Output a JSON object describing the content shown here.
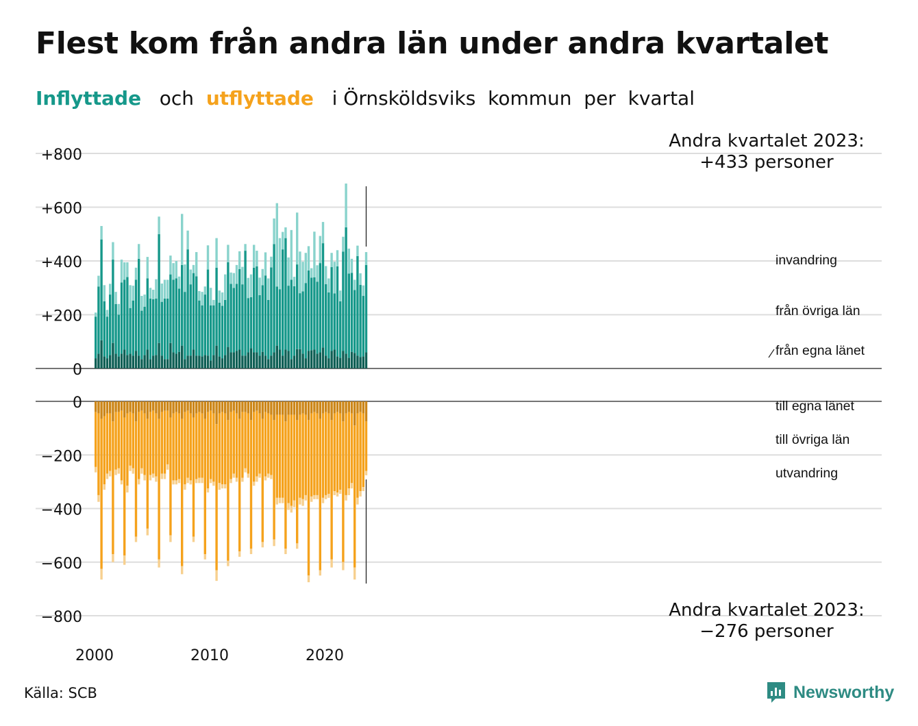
{
  "title": "Flest kom från andra län under andra kvartalet",
  "subtitle": {
    "in_word": "Inflyttade",
    "och": "och",
    "out_word": "utflyttade",
    "rest": "i Örnsköldsviks  kommun  per  kvartal"
  },
  "source": "Källa: SCB",
  "brand": "Newsworthy",
  "colors": {
    "in_egna": "#0e5f55",
    "in_ovriga": "#16988a",
    "in_invandring": "#89d3cc",
    "out_egna": "#cc8618",
    "out_ovriga": "#f5a21c",
    "out_utvandring": "#f7d08f",
    "in_text": "#16988a",
    "out_text": "#f5a21c",
    "grid": "#dddddd"
  },
  "chart_data": {
    "type": "bar",
    "stacked": true,
    "x_start": "2000 Q1",
    "x_end": "2023 Q2",
    "xticks": [
      "2000",
      "2010",
      "2020"
    ],
    "top_panel": {
      "ylim": [
        0,
        800
      ],
      "yticks": [
        0,
        200,
        400,
        600,
        800
      ],
      "ytick_labels": [
        "0",
        "+200",
        "+400",
        "+600",
        "+800"
      ],
      "annotation": [
        "Andra kvartalet 2023:",
        "+433 personer"
      ],
      "series": [
        {
          "name": "från egna länet",
          "values": [
            38,
            55,
            105,
            45,
            38,
            50,
            95,
            55,
            45,
            55,
            70,
            50,
            55,
            48,
            65,
            48,
            35,
            50,
            70,
            35,
            48,
            50,
            95,
            48,
            35,
            35,
            95,
            60,
            55,
            62,
            85,
            35,
            48,
            48,
            70,
            48,
            48,
            45,
            50,
            48,
            30,
            50,
            85,
            45,
            38,
            50,
            80,
            60,
            60,
            65,
            70,
            48,
            48,
            60,
            75,
            60,
            60,
            48,
            62,
            48,
            35,
            48,
            60,
            85,
            70,
            48,
            70,
            65,
            35,
            48,
            72,
            72,
            55,
            38,
            65,
            68,
            70,
            55,
            60,
            78,
            48,
            38,
            65,
            70,
            45,
            40,
            65,
            55,
            40,
            62,
            58,
            48,
            42,
            45,
            60
          ]
        },
        {
          "name": "från övriga län",
          "values": [
            155,
            250,
            375,
            205,
            155,
            225,
            310,
            185,
            155,
            265,
            260,
            290,
            170,
            205,
            265,
            360,
            180,
            180,
            265,
            225,
            210,
            210,
            405,
            200,
            225,
            225,
            255,
            270,
            280,
            235,
            300,
            250,
            395,
            265,
            285,
            295,
            205,
            190,
            225,
            320,
            205,
            185,
            290,
            200,
            195,
            205,
            315,
            255,
            240,
            250,
            300,
            265,
            390,
            202,
            190,
            315,
            320,
            225,
            248,
            298,
            220,
            328,
            403,
            220,
            225,
            395,
            415,
            243,
            295,
            258,
            315,
            208,
            232,
            280,
            300,
            270,
            269,
            268,
            332,
            388,
            266,
            245,
            312,
            209,
            335,
            210,
            370,
            470,
            313,
            294,
            234,
            370,
            269,
            225,
            325
          ]
        },
        {
          "name": "invandring",
          "values": [
            15,
            40,
            50,
            60,
            25,
            40,
            65,
            45,
            40,
            85,
            65,
            55,
            85,
            55,
            45,
            55,
            55,
            45,
            80,
            40,
            35,
            72,
            65,
            68,
            70,
            70,
            70,
            62,
            65,
            45,
            190,
            102,
            70,
            55,
            30,
            90,
            35,
            50,
            30,
            90,
            65,
            20,
            110,
            45,
            50,
            95,
            65,
            42,
            55,
            70,
            66,
            65,
            25,
            75,
            85,
            85,
            58,
            65,
            60,
            86,
            80,
            40,
            95,
            310,
            190,
            65,
            40,
            105,
            185,
            35,
            193,
            155,
            110,
            112,
            90,
            35,
            170,
            61,
            101,
            79,
            67,
            52,
            53,
            118,
            60,
            40,
            55,
            163,
            93,
            52,
            38,
            39,
            43,
            39,
            48
          ]
        }
      ]
    },
    "bottom_panel": {
      "ylim": [
        -800,
        0
      ],
      "yticks": [
        0,
        -200,
        -400,
        -600,
        -800
      ],
      "ytick_labels": [
        "0",
        "−200",
        "−400",
        "−600",
        "−800"
      ],
      "annotation": [
        "Andra kvartalet 2023:",
        "−276 personer"
      ],
      "series": [
        {
          "name": "till egna länet",
          "values": [
            -40,
            -45,
            -65,
            -55,
            -45,
            -45,
            -75,
            -40,
            -40,
            -35,
            -60,
            -45,
            -40,
            -45,
            -75,
            -40,
            -35,
            -45,
            -65,
            -40,
            -35,
            -45,
            -65,
            -40,
            -35,
            -35,
            -60,
            -45,
            -40,
            -45,
            -65,
            -40,
            -35,
            -45,
            -60,
            -45,
            -40,
            -45,
            -65,
            -40,
            -35,
            -45,
            -85,
            -45,
            -40,
            -45,
            -70,
            -40,
            -35,
            -45,
            -65,
            -40,
            -40,
            -45,
            -70,
            -40,
            -35,
            -45,
            -65,
            -40,
            -45,
            -50,
            -70,
            -50,
            -50,
            -50,
            -75,
            -50,
            -50,
            -50,
            -70,
            -50,
            -45,
            -50,
            -70,
            -45,
            -40,
            -45,
            -65,
            -45,
            -40,
            -45,
            -70,
            -45,
            -40,
            -45,
            -75,
            -45,
            -40,
            -45,
            -90,
            -45,
            -40,
            -45,
            -75
          ]
        },
        {
          "name": "till övriga län",
          "values": [
            -205,
            -305,
            -560,
            -255,
            -225,
            -215,
            -495,
            -215,
            -210,
            -260,
            -515,
            -270,
            -200,
            -205,
            -430,
            -250,
            -215,
            -230,
            -410,
            -235,
            -235,
            -235,
            -525,
            -230,
            -235,
            -200,
            -440,
            -250,
            -255,
            -245,
            -550,
            -270,
            -250,
            -250,
            -445,
            -245,
            -245,
            -240,
            -505,
            -285,
            -255,
            -255,
            -545,
            -260,
            -270,
            -265,
            -525,
            -250,
            -235,
            -240,
            -495,
            -245,
            -210,
            -225,
            -480,
            -260,
            -245,
            -225,
            -460,
            -240,
            -225,
            -225,
            -445,
            -310,
            -310,
            -310,
            -475,
            -330,
            -340,
            -320,
            -460,
            -310,
            -320,
            -300,
            -580,
            -310,
            -310,
            -305,
            -565,
            -315,
            -310,
            -300,
            -520,
            -290,
            -300,
            -285,
            -525,
            -305,
            -285,
            -260,
            -530,
            -315,
            -295,
            -275,
            -185
          ]
        },
        {
          "name": "utvandring",
          "values": [
            -20,
            -25,
            -40,
            -20,
            -20,
            -20,
            -30,
            -20,
            -20,
            -15,
            -35,
            -25,
            -20,
            -20,
            -20,
            -20,
            -20,
            -20,
            -25,
            -20,
            -15,
            -20,
            -30,
            -20,
            -20,
            -20,
            -25,
            -15,
            -15,
            -15,
            -30,
            -20,
            -20,
            -15,
            -20,
            -15,
            -20,
            -20,
            -20,
            -15,
            -15,
            -15,
            -40,
            -25,
            -15,
            -15,
            -20,
            -15,
            -15,
            -15,
            -20,
            -15,
            -15,
            -15,
            -20,
            -15,
            -20,
            -15,
            -20,
            -15,
            -15,
            -15,
            -25,
            -25,
            -20,
            -20,
            -20,
            -25,
            -25,
            -25,
            -20,
            -25,
            -25,
            -20,
            -25,
            -20,
            -15,
            -15,
            -20,
            -20,
            -15,
            -15,
            -30,
            -15,
            -15,
            -15,
            -30,
            -20,
            -25,
            -20,
            -45,
            -25,
            -20,
            -15,
            -16
          ]
        }
      ]
    },
    "labels_in": [
      "invandring",
      "från övriga län",
      "från egna länet"
    ],
    "labels_out": [
      "till egna länet",
      "till övriga län",
      "utvandring"
    ]
  }
}
